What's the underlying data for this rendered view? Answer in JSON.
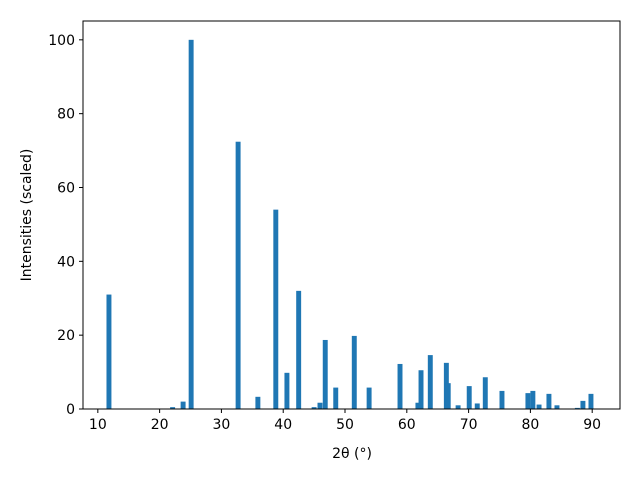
{
  "chart_data": {
    "type": "bar",
    "xlabel": "2θ (°)",
    "ylabel": "Intensities (scaled)",
    "x": [
      11.8,
      22.1,
      23.8,
      25.1,
      32.7,
      35.9,
      38.8,
      40.6,
      42.5,
      45.0,
      45.95,
      46.8,
      48.5,
      51.5,
      53.9,
      58.9,
      61.8,
      62.3,
      63.8,
      66.4,
      66.7,
      68.3,
      70.1,
      71.4,
      72.7,
      75.4,
      79.6,
      80.4,
      81.4,
      83.0,
      84.3,
      87.6,
      88.5,
      89.8
    ],
    "values": [
      31,
      0.5,
      2,
      100,
      72.4,
      3.3,
      54,
      9.8,
      32,
      0.5,
      1.7,
      18.7,
      5.8,
      19.8,
      5.8,
      12.2,
      1.7,
      10.5,
      14.6,
      12.5,
      7,
      1,
      6.2,
      1.5,
      8.6,
      4.9,
      4.3,
      4.9,
      1.2,
      4.1,
      1,
      0.3,
      2.2,
      4.1
    ],
    "color": "#1f77b4",
    "bar_width": 0.8,
    "xlim": [
      7.6,
      94.5
    ],
    "xticks": [
      10,
      20,
      30,
      40,
      50,
      60,
      70,
      80,
      90
    ],
    "ylim": [
      0,
      105.1
    ],
    "yticks": [
      0,
      20,
      40,
      60,
      80,
      100
    ]
  }
}
